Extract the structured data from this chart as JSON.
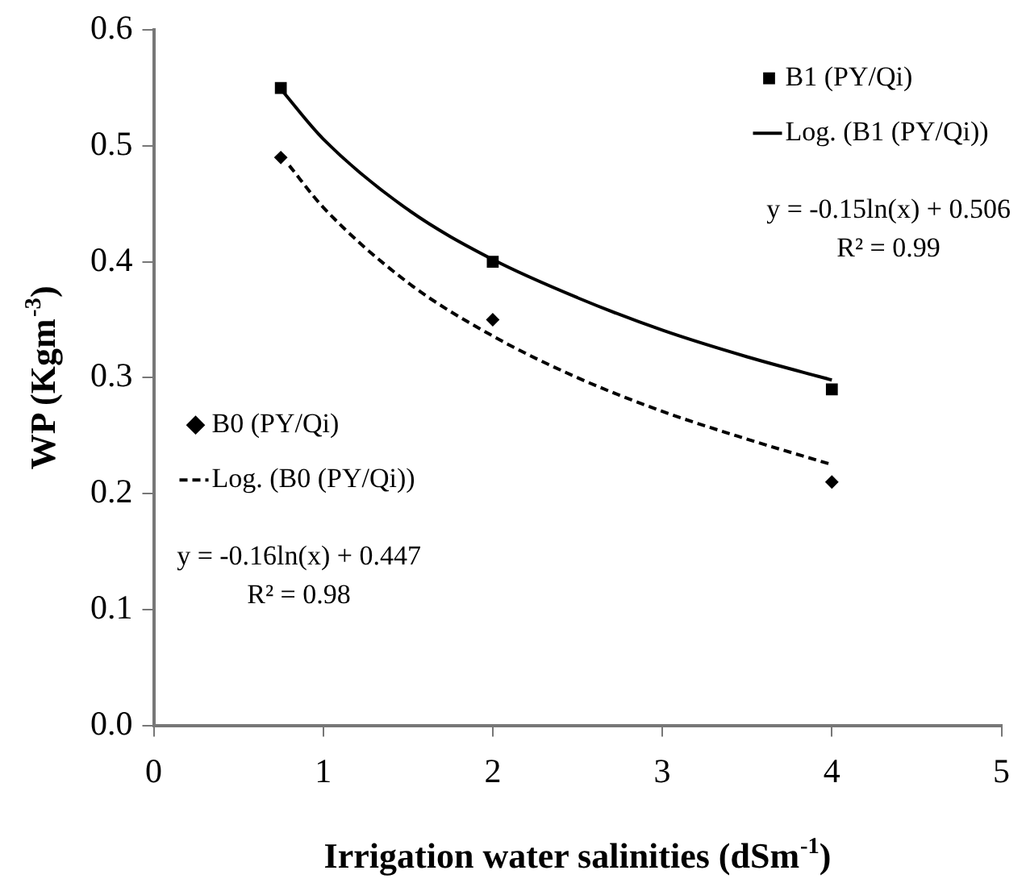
{
  "chart_data": {
    "type": "scatter",
    "xlabel": "Irrigation water salinities (dSm$^{-1}$)",
    "ylabel": "WP (Kgm$^{-3}$)",
    "xlim": [
      0,
      5
    ],
    "xticks": [
      0,
      1,
      2,
      3,
      4,
      5
    ],
    "ylim": [
      0,
      0.6
    ],
    "yticks": [
      {
        "value": 0,
        "label": "0.0"
      },
      0.1,
      0.2,
      0.3,
      0.4,
      0.5,
      0.6
    ],
    "grid": false,
    "legend": "top right",
    "series": [
      {
        "name": "B1 (PY/Qi)",
        "type": "scatter",
        "marker": "square",
        "color": "#000000",
        "x": [
          0.75,
          2,
          4
        ],
        "values": [
          0.55,
          0.4,
          0.29
        ]
      },
      {
        "name": "Log. (B1 (PY/Qi))",
        "type": "line",
        "marker": "none",
        "line_style": "solid",
        "color": "#000000",
        "x": [
          0.75,
          1,
          1.5,
          2,
          2.5,
          3,
          3.5,
          4
        ],
        "values": [
          0.549,
          0.506,
          0.445,
          0.402,
          0.369,
          0.341,
          0.318,
          0.298
        ]
      },
      {
        "name": "B0 (PY/Qi)",
        "type": "scatter",
        "marker": "diamond",
        "color": "#000000",
        "x": [
          0.75,
          2,
          4
        ],
        "values": [
          0.49,
          0.35,
          0.21
        ]
      },
      {
        "name": "Log. (B0 (PY/Qi))",
        "type": "line",
        "marker": "none",
        "line_style": "dashed",
        "color": "#000000",
        "x": [
          0.8,
          1,
          1.5,
          2,
          2.5,
          3,
          3.5,
          4
        ],
        "values": [
          0.483,
          0.447,
          0.382,
          0.336,
          0.3,
          0.271,
          0.247,
          0.225
        ]
      }
    ],
    "annotations": [
      "y = -0.15ln(x) + 0.506",
      "R² = 0.99",
      "y = -0.16ln(x) + 0.447",
      "R² = 0.98"
    ]
  }
}
